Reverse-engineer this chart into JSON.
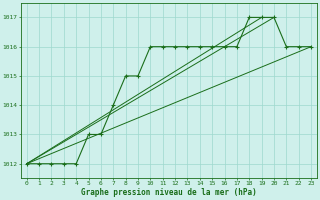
{
  "title": "Graphe pression niveau de la mer (hPa)",
  "bg_color": "#cff0eb",
  "line_color": "#1a6e1a",
  "grid_color": "#9ed8ce",
  "xlim": [
    -0.5,
    23.5
  ],
  "ylim": [
    1011.5,
    1017.5
  ],
  "yticks": [
    1012,
    1013,
    1014,
    1015,
    1016,
    1017
  ],
  "xticks": [
    0,
    1,
    2,
    3,
    4,
    5,
    6,
    7,
    8,
    9,
    10,
    11,
    12,
    13,
    14,
    15,
    16,
    17,
    18,
    19,
    20,
    21,
    22,
    23
  ],
  "series_main": {
    "x": [
      0,
      1,
      2,
      3,
      4,
      5,
      6,
      7,
      8,
      9,
      10,
      11,
      12,
      13,
      14,
      15,
      16,
      17,
      18,
      19,
      20,
      21,
      22,
      23
    ],
    "y": [
      1012,
      1012,
      1012,
      1012,
      1012,
      1013,
      1013,
      1014,
      1015,
      1015,
      1016,
      1016,
      1016,
      1016,
      1016,
      1016,
      1016,
      1016,
      1017,
      1017,
      1017,
      1016,
      1016,
      1016
    ]
  },
  "trend1": {
    "x": [
      0,
      23
    ],
    "y": [
      1012,
      1016
    ]
  },
  "trend2": {
    "x": [
      0,
      20
    ],
    "y": [
      1012,
      1017
    ]
  },
  "trend3": {
    "x": [
      0,
      19
    ],
    "y": [
      1012,
      1017
    ]
  }
}
